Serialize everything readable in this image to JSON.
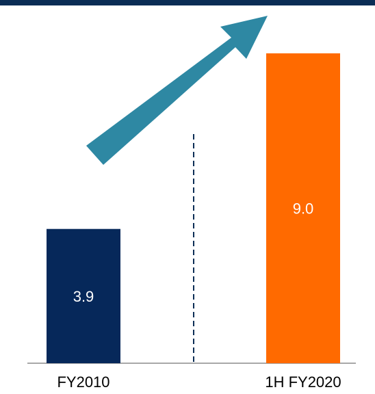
{
  "chart_data": {
    "type": "bar",
    "categories": [
      "FY2010",
      "1H FY2020"
    ],
    "values": [
      3.9,
      9.0
    ],
    "data_labels": [
      "3.9",
      "9.0"
    ],
    "colors": [
      "#06285a",
      "#ff6a00"
    ],
    "title": "",
    "xlabel": "",
    "ylabel": "",
    "ylim": [
      0,
      10
    ],
    "grid": false,
    "legend": "none",
    "decorations": {
      "top_rule_color": "#0b2d55",
      "arrow_color": "#2e88a3",
      "divider_color": "#0b2d55",
      "divider_style": "dashed"
    }
  }
}
